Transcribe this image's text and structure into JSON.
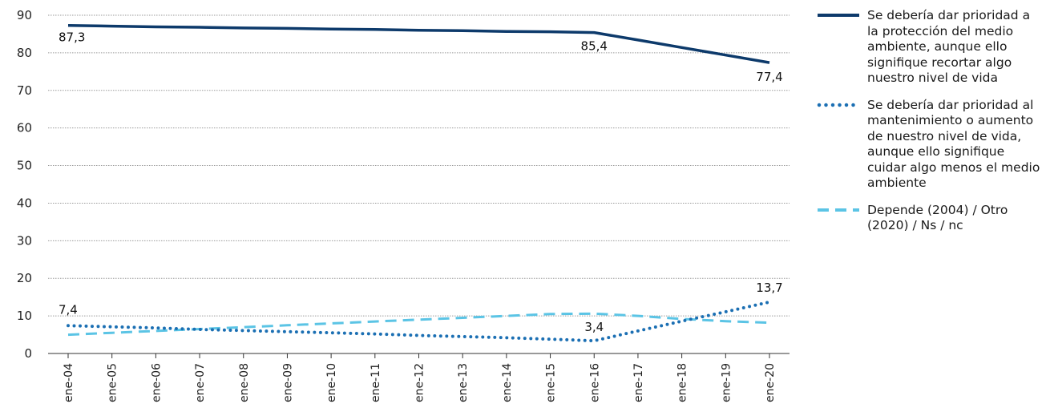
{
  "chart_data": {
    "type": "line",
    "title": "",
    "xlabel": "",
    "ylabel": "",
    "ylim": [
      0,
      90
    ],
    "yticks": [
      0,
      10,
      20,
      30,
      40,
      50,
      60,
      70,
      80,
      90
    ],
    "grid": true,
    "legend_position": "right",
    "categories": [
      "ene-04",
      "ene-05",
      "ene-06",
      "ene-07",
      "ene-08",
      "ene-09",
      "ene-10",
      "ene-11",
      "ene-12",
      "ene-13",
      "ene-14",
      "ene-15",
      "ene-16",
      "ene-17",
      "ene-18",
      "ene-19",
      "ene-20"
    ],
    "series": [
      {
        "name": "Se debería dar prioridad a la protección del medio ambiente, aunque ello signifique recortar algo nuestro nivel de vida",
        "style": "solid",
        "color": "#0d3a6b",
        "values": [
          87.3,
          87.1,
          86.9,
          86.8,
          86.6,
          86.5,
          86.3,
          86.2,
          86.0,
          85.9,
          85.7,
          85.6,
          85.4,
          83.4,
          81.4,
          79.4,
          77.4
        ],
        "labels": [
          {
            "index": 0,
            "text": "87,3"
          },
          {
            "index": 12,
            "text": "85,4"
          },
          {
            "index": 16,
            "text": "77,4"
          }
        ]
      },
      {
        "name": "Se debería dar prioridad al mantenimiento o aumento de nuestro nivel de vida, aunque ello signifique cuidar algo menos el medio ambiente",
        "style": "dotted",
        "color": "#1b6fb3",
        "values": [
          7.4,
          7.1,
          6.8,
          6.4,
          6.1,
          5.8,
          5.5,
          5.2,
          4.8,
          4.5,
          4.2,
          3.8,
          3.4,
          6.0,
          8.6,
          11.1,
          13.7
        ],
        "labels": [
          {
            "index": 0,
            "text": "7,4"
          },
          {
            "index": 12,
            "text": "3,4"
          },
          {
            "index": 16,
            "text": "13,7"
          }
        ]
      },
      {
        "name": "Depende (2004) / Otro (2020) / Ns / nc",
        "style": "dashed",
        "color": "#5bc4e5",
        "values": [
          5.0,
          5.5,
          6.0,
          6.5,
          7.0,
          7.5,
          8.0,
          8.5,
          9.0,
          9.5,
          10.0,
          10.5,
          10.6,
          10.0,
          9.2,
          8.6,
          8.2
        ],
        "labels": []
      }
    ]
  }
}
